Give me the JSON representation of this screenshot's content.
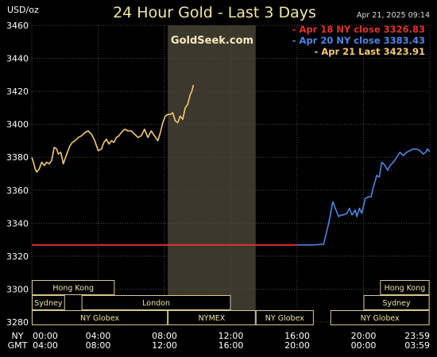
{
  "header": {
    "unit": "USD/oz",
    "title": "24 Hour Gold - Last 3 Days",
    "timestamp": "Apr 21, 2025  09:14",
    "watermark": "GoldSeek.com"
  },
  "colors": {
    "background": "#000000",
    "grid": "#4a4a4a",
    "today_line": "#f3c975",
    "prev_close_line": "#e0322a",
    "mid_close_line": "#4d86e6",
    "nymex_band": "#3c382c",
    "session_border": "#d8c890",
    "session_text": "#f0e4a0"
  },
  "legend": [
    {
      "text": "- Apr 18 NY close 3326.83",
      "color": "#e0322a"
    },
    {
      "text": "- Apr 20 NY close 3383.43",
      "color": "#4d86e6"
    },
    {
      "text": "- Apr 21 Last 3423.91",
      "color": "#f3c975"
    }
  ],
  "row_labels": {
    "ny": "NY",
    "gmt": "GMT"
  },
  "time_axis": {
    "ny": [
      "00:00",
      "04:00",
      "08:00",
      "12:00",
      "16:00",
      "20:00",
      "23:59"
    ],
    "gmt": [
      "04:00",
      "08:00",
      "12:00",
      "16:00",
      "20:00",
      "00:00",
      "03:59"
    ]
  },
  "sessions": [
    {
      "name": "Hong Kong",
      "start": 0,
      "end": 5.0,
      "row": 0
    },
    {
      "name": "Hong Kong",
      "start": 21.0,
      "end": 23.98,
      "row": 0
    },
    {
      "name": "Sydney",
      "start": 0,
      "end": 2.0,
      "row": 1
    },
    {
      "name": "London",
      "start": 3.0,
      "end": 12.0,
      "row": 1
    },
    {
      "name": "Sydney",
      "start": 20.0,
      "end": 23.98,
      "row": 1
    },
    {
      "name": "NY Globex",
      "start": 0,
      "end": 8.2,
      "row": 2
    },
    {
      "name": "NYMEX",
      "start": 8.2,
      "end": 13.5,
      "row": 2
    },
    {
      "name": "NY Globex",
      "start": 13.5,
      "end": 17.0,
      "row": 2
    },
    {
      "name": "NY Globex",
      "start": 18.0,
      "end": 23.98,
      "row": 2
    }
  ],
  "chart_data": {
    "type": "line",
    "title": "24 Hour Gold - Last 3 Days",
    "ylabel": "USD/oz",
    "xlabel": "",
    "xlim": [
      0,
      24
    ],
    "ylim": [
      3280,
      3460
    ],
    "y_ticks": [
      3460,
      3440,
      3420,
      3400,
      3380,
      3360,
      3340,
      3320,
      3300,
      3280
    ],
    "grid": true,
    "legend_position": "top-right",
    "nymex_band": [
      8.2,
      13.5
    ],
    "series": [
      {
        "name": "Apr 18 NY close 3326.83",
        "color": "#e0322a",
        "x": [
          0,
          16
        ],
        "y": [
          3326.83,
          3326.83
        ]
      },
      {
        "name": "Apr 20 NY close 3383.43",
        "color": "#4d86e6",
        "x": [
          16,
          16.8,
          17.3,
          17.6,
          17.9,
          18.15,
          18.3,
          18.5,
          18.65,
          18.8,
          19.0,
          19.15,
          19.3,
          19.5,
          19.6,
          19.75,
          19.9,
          20.1,
          20.3,
          20.45,
          20.6,
          20.8,
          20.95,
          21.1,
          21.3,
          21.45,
          21.6,
          21.8,
          22.0,
          22.2,
          22.4,
          22.6,
          22.8,
          23.0,
          23.2,
          23.4,
          23.6,
          23.75,
          23.85,
          23.98
        ],
        "y": [
          3326.83,
          3326.8,
          3327.0,
          3327.3,
          3340,
          3353,
          3349,
          3344,
          3345,
          3345,
          3346,
          3349,
          3345,
          3348,
          3344,
          3349,
          3346,
          3355,
          3356,
          3356,
          3362,
          3369,
          3368,
          3377,
          3375,
          3372,
          3375,
          3377,
          3380,
          3383,
          3381,
          3383,
          3384,
          3385,
          3385,
          3384,
          3382,
          3383,
          3385,
          3383.43
        ]
      },
      {
        "name": "Apr 21 Last 3423.91",
        "color": "#f3c975",
        "x": [
          0,
          0.1,
          0.2,
          0.3,
          0.45,
          0.6,
          0.75,
          0.9,
          1.05,
          1.2,
          1.35,
          1.5,
          1.6,
          1.75,
          1.9,
          2.0,
          2.15,
          2.3,
          2.45,
          2.6,
          2.8,
          3.0,
          3.2,
          3.4,
          3.6,
          3.8,
          4.0,
          4.2,
          4.35,
          4.5,
          4.65,
          4.8,
          4.95,
          5.1,
          5.25,
          5.4,
          5.6,
          5.8,
          6.0,
          6.2,
          6.4,
          6.6,
          6.8,
          7.0,
          7.2,
          7.4,
          7.6,
          7.75,
          7.9,
          8.05,
          8.2,
          8.35,
          8.5,
          8.65,
          8.8,
          8.95,
          9.1,
          9.25,
          9.4,
          9.55,
          9.65,
          9.75
        ],
        "y": [
          3380,
          3377,
          3373,
          3371,
          3373,
          3377,
          3375,
          3377,
          3376,
          3378,
          3386,
          3385,
          3382,
          3383,
          3376,
          3379,
          3383,
          3387,
          3389,
          3390,
          3392,
          3393,
          3395,
          3396,
          3394,
          3390,
          3384,
          3385,
          3389,
          3391,
          3388,
          3390,
          3389,
          3392,
          3393,
          3395,
          3397,
          3396,
          3396,
          3394,
          3392,
          3393,
          3397,
          3392,
          3396,
          3393,
          3390,
          3395,
          3401,
          3405,
          3406,
          3406,
          3407,
          3402,
          3401,
          3405,
          3403,
          3410,
          3412,
          3418,
          3420,
          3423.91
        ]
      }
    ]
  }
}
